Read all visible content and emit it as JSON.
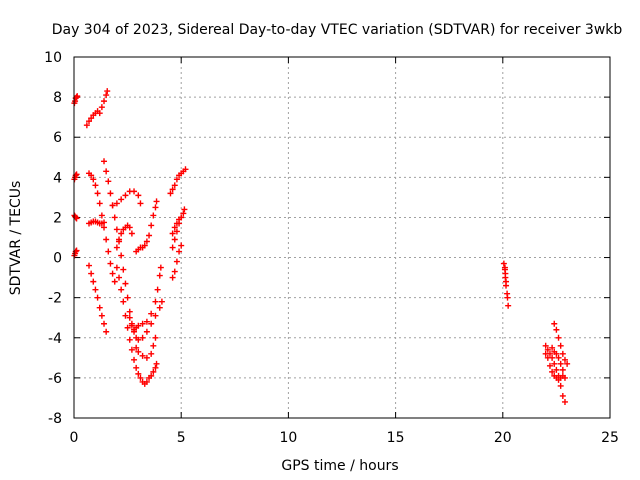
{
  "chart_data": {
    "type": "scatter",
    "title": "Day 304 of 2023, Sidereal Day-to-day VTEC variation (SDTVAR) for receiver 3wkb",
    "xlabel": "GPS time / hours",
    "ylabel": "SDTVAR / TECUs",
    "xlim": [
      0,
      25
    ],
    "ylim": [
      -8,
      10
    ],
    "xticks": [
      "0",
      "5",
      "10",
      "15",
      "20",
      "25"
    ],
    "yticks": [
      "-8",
      "-6",
      "-4",
      "-2",
      "0",
      "2",
      "4",
      "6",
      "8",
      "10"
    ],
    "grid": true,
    "marker": "+",
    "color": "#ff0000",
    "series": [
      {
        "values": [
          [
            0.02,
            7.7
          ],
          [
            0.05,
            7.8
          ],
          [
            0.08,
            7.95
          ],
          [
            0.12,
            8.0
          ],
          [
            0.15,
            8.05
          ]
        ]
      },
      {
        "values": [
          [
            0.02,
            3.9
          ],
          [
            0.05,
            4.0
          ],
          [
            0.08,
            4.1
          ],
          [
            0.12,
            4.15
          ]
        ]
      },
      {
        "values": [
          [
            0.02,
            2.1
          ],
          [
            0.05,
            2.05
          ],
          [
            0.08,
            2.0
          ],
          [
            0.12,
            1.95
          ]
        ]
      },
      {
        "values": [
          [
            0.02,
            0.1
          ],
          [
            0.05,
            0.2
          ],
          [
            0.08,
            0.3
          ],
          [
            0.12,
            0.35
          ]
        ]
      },
      {
        "values": [
          [
            0.6,
            6.6
          ],
          [
            0.7,
            6.8
          ],
          [
            0.8,
            6.95
          ],
          [
            0.9,
            7.1
          ],
          [
            1.0,
            7.2
          ],
          [
            1.1,
            7.3
          ],
          [
            1.2,
            7.2
          ],
          [
            1.3,
            7.5
          ],
          [
            1.4,
            7.8
          ],
          [
            1.5,
            8.1
          ],
          [
            1.55,
            8.3
          ]
        ]
      },
      {
        "values": [
          [
            0.7,
            1.7
          ],
          [
            0.8,
            1.75
          ],
          [
            0.9,
            1.8
          ],
          [
            1.0,
            1.8
          ],
          [
            1.1,
            1.75
          ],
          [
            1.2,
            1.7
          ],
          [
            1.3,
            1.7
          ],
          [
            1.4,
            1.75
          ]
        ]
      },
      {
        "values": [
          [
            0.7,
            4.2
          ],
          [
            0.8,
            4.1
          ],
          [
            0.9,
            3.9
          ],
          [
            1.0,
            3.6
          ],
          [
            1.1,
            3.2
          ],
          [
            1.2,
            2.7
          ],
          [
            1.3,
            2.1
          ],
          [
            1.4,
            1.5
          ],
          [
            1.5,
            0.9
          ],
          [
            1.6,
            0.3
          ],
          [
            1.7,
            -0.3
          ],
          [
            1.8,
            -0.8
          ],
          [
            1.9,
            -1.2
          ]
        ]
      },
      {
        "values": [
          [
            0.7,
            -0.4
          ],
          [
            0.8,
            -0.8
          ],
          [
            0.9,
            -1.2
          ],
          [
            1.0,
            -1.6
          ],
          [
            1.1,
            -2.0
          ],
          [
            1.2,
            -2.5
          ],
          [
            1.3,
            -2.9
          ],
          [
            1.4,
            -3.3
          ],
          [
            1.5,
            -3.7
          ]
        ]
      },
      {
        "values": [
          [
            1.4,
            4.8
          ],
          [
            1.5,
            4.3
          ],
          [
            1.6,
            3.8
          ],
          [
            1.7,
            3.2
          ],
          [
            1.8,
            2.6
          ],
          [
            1.9,
            2.0
          ],
          [
            2.0,
            1.4
          ],
          [
            2.1,
            0.8
          ],
          [
            2.2,
            0.1
          ],
          [
            2.3,
            -0.6
          ],
          [
            2.4,
            -1.3
          ],
          [
            2.5,
            -2.0
          ],
          [
            2.6,
            -2.7
          ],
          [
            2.7,
            -3.3
          ],
          [
            2.8,
            -3.7
          ],
          [
            2.9,
            -4.0
          ],
          [
            3.0,
            -4.1
          ],
          [
            3.2,
            -4.0
          ],
          [
            3.4,
            -3.7
          ],
          [
            3.6,
            -3.3
          ],
          [
            3.8,
            -2.9
          ],
          [
            4.0,
            -2.5
          ],
          [
            4.1,
            -2.2
          ]
        ]
      },
      {
        "values": [
          [
            1.8,
            2.6
          ],
          [
            2.0,
            2.7
          ],
          [
            2.2,
            2.9
          ],
          [
            2.4,
            3.1
          ],
          [
            2.6,
            3.3
          ],
          [
            2.8,
            3.3
          ],
          [
            3.0,
            3.1
          ],
          [
            3.1,
            2.7
          ]
        ]
      },
      {
        "values": [
          [
            2.0,
            0.5
          ],
          [
            2.1,
            0.9
          ],
          [
            2.2,
            1.2
          ],
          [
            2.3,
            1.4
          ],
          [
            2.4,
            1.5
          ],
          [
            2.5,
            1.6
          ],
          [
            2.6,
            1.5
          ],
          [
            2.7,
            1.2
          ]
        ]
      },
      {
        "values": [
          [
            2.0,
            -0.5
          ],
          [
            2.1,
            -1.0
          ],
          [
            2.2,
            -1.6
          ],
          [
            2.3,
            -2.2
          ],
          [
            2.4,
            -2.9
          ],
          [
            2.5,
            -3.5
          ],
          [
            2.6,
            -4.1
          ],
          [
            2.7,
            -4.6
          ],
          [
            2.8,
            -5.1
          ],
          [
            2.9,
            -5.5
          ],
          [
            3.0,
            -5.8
          ],
          [
            3.1,
            -6.0
          ],
          [
            3.2,
            -6.2
          ],
          [
            3.3,
            -6.3
          ],
          [
            3.4,
            -6.2
          ],
          [
            3.5,
            -6.0
          ],
          [
            3.6,
            -5.9
          ],
          [
            3.7,
            -5.7
          ],
          [
            3.8,
            -5.5
          ],
          [
            3.85,
            -5.3
          ]
        ]
      },
      {
        "values": [
          [
            2.6,
            -3.0
          ],
          [
            2.7,
            -3.4
          ],
          [
            2.8,
            -3.6
          ],
          [
            2.9,
            -3.5
          ],
          [
            3.0,
            -3.4
          ],
          [
            3.2,
            -3.3
          ],
          [
            3.4,
            -3.2
          ],
          [
            3.6,
            -2.8
          ],
          [
            3.8,
            -2.2
          ],
          [
            3.9,
            -1.6
          ],
          [
            4.0,
            -0.9
          ],
          [
            4.05,
            -0.5
          ]
        ]
      },
      {
        "values": [
          [
            2.9,
            -4.5
          ],
          [
            3.0,
            -4.7
          ],
          [
            3.2,
            -4.9
          ],
          [
            3.4,
            -5.0
          ],
          [
            3.6,
            -4.8
          ],
          [
            3.7,
            -4.4
          ],
          [
            3.8,
            -4.0
          ]
        ]
      },
      {
        "values": [
          [
            2.9,
            0.3
          ],
          [
            3.0,
            0.4
          ],
          [
            3.1,
            0.5
          ],
          [
            3.2,
            0.5
          ],
          [
            3.3,
            0.6
          ],
          [
            3.4,
            0.8
          ],
          [
            3.5,
            1.1
          ],
          [
            3.6,
            1.6
          ],
          [
            3.7,
            2.1
          ],
          [
            3.8,
            2.5
          ],
          [
            3.85,
            2.8
          ]
        ]
      },
      {
        "values": [
          [
            4.6,
            -1.0
          ],
          [
            4.7,
            -0.7
          ],
          [
            4.8,
            -0.2
          ],
          [
            4.9,
            0.3
          ],
          [
            5.0,
            0.6
          ]
        ]
      },
      {
        "values": [
          [
            4.6,
            0.5
          ],
          [
            4.7,
            0.9
          ],
          [
            4.8,
            1.3
          ],
          [
            4.9,
            1.7
          ],
          [
            5.0,
            2.0
          ],
          [
            5.1,
            2.2
          ],
          [
            5.15,
            2.4
          ]
        ]
      },
      {
        "values": [
          [
            4.6,
            1.2
          ],
          [
            4.7,
            1.5
          ],
          [
            4.8,
            1.7
          ],
          [
            4.9,
            1.9
          ],
          [
            5.0,
            2.0
          ]
        ]
      },
      {
        "values": [
          [
            4.5,
            3.2
          ],
          [
            4.6,
            3.4
          ],
          [
            4.7,
            3.6
          ],
          [
            4.8,
            3.9
          ],
          [
            4.9,
            4.1
          ],
          [
            5.0,
            4.2
          ],
          [
            5.1,
            4.3
          ],
          [
            5.2,
            4.4
          ]
        ]
      },
      {
        "values": [
          [
            20.05,
            -0.3
          ],
          [
            20.1,
            -0.6
          ],
          [
            20.12,
            -1.0
          ],
          [
            20.15,
            -1.4
          ],
          [
            20.2,
            -1.8
          ],
          [
            20.22,
            -2.0
          ],
          [
            20.25,
            -2.4
          ]
        ]
      },
      {
        "values": [
          [
            20.1,
            -0.5
          ],
          [
            20.12,
            -0.8
          ],
          [
            20.15,
            -1.2
          ]
        ]
      },
      {
        "values": [
          [
            22.0,
            -4.4
          ],
          [
            22.1,
            -4.6
          ],
          [
            22.2,
            -4.8
          ],
          [
            22.3,
            -5.0
          ],
          [
            22.4,
            -5.3
          ],
          [
            22.5,
            -5.6
          ],
          [
            22.6,
            -5.9
          ],
          [
            22.7,
            -6.4
          ],
          [
            22.8,
            -6.9
          ],
          [
            22.9,
            -7.2
          ]
        ]
      },
      {
        "values": [
          [
            22.0,
            -4.8
          ],
          [
            22.1,
            -5.0
          ],
          [
            22.2,
            -5.4
          ],
          [
            22.3,
            -5.7
          ],
          [
            22.4,
            -5.9
          ],
          [
            22.5,
            -6.0
          ],
          [
            22.6,
            -6.1
          ],
          [
            22.7,
            -6.0
          ],
          [
            22.8,
            -5.9
          ],
          [
            22.9,
            -6.0
          ]
        ]
      },
      {
        "values": [
          [
            22.4,
            -3.3
          ],
          [
            22.5,
            -3.6
          ],
          [
            22.6,
            -4.0
          ],
          [
            22.7,
            -4.4
          ],
          [
            22.8,
            -4.8
          ],
          [
            22.9,
            -5.1
          ],
          [
            23.0,
            -5.3
          ]
        ]
      },
      {
        "values": [
          [
            22.3,
            -4.5
          ],
          [
            22.4,
            -4.7
          ],
          [
            22.5,
            -4.8
          ],
          [
            22.6,
            -5.0
          ],
          [
            22.7,
            -5.3
          ],
          [
            22.8,
            -5.6
          ]
        ]
      }
    ]
  }
}
